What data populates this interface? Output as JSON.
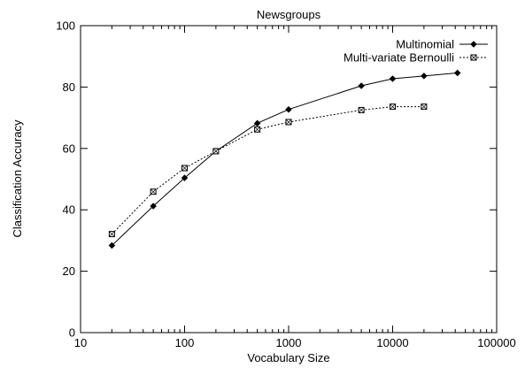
{
  "chart_data": {
    "type": "line",
    "title": "Newsgroups",
    "xlabel": "Vocabulary Size",
    "ylabel": "Classification Accuracy",
    "xscale": "log",
    "xlim": [
      10,
      100000
    ],
    "ylim": [
      0,
      100
    ],
    "xticks": [
      {
        "value": 10,
        "label": "10"
      },
      {
        "value": 100,
        "label": "100"
      },
      {
        "value": 1000,
        "label": "1000"
      },
      {
        "value": 10000,
        "label": "10000"
      },
      {
        "value": 100000,
        "label": "100000"
      }
    ],
    "yticks": [
      {
        "value": 0,
        "label": "0"
      },
      {
        "value": 20,
        "label": "20"
      },
      {
        "value": 40,
        "label": "40"
      },
      {
        "value": 60,
        "label": "60"
      },
      {
        "value": 80,
        "label": "80"
      },
      {
        "value": 100,
        "label": "100"
      }
    ],
    "grid": false,
    "legend_position": "top-right",
    "series": [
      {
        "name": "Multinomial",
        "line_style": "solid",
        "marker": "diamond",
        "x": [
          20,
          50,
          100,
          200,
          500,
          1000,
          5000,
          10000,
          20000,
          42000
        ],
        "y": [
          28.4,
          41.2,
          50.4,
          59.1,
          68.2,
          72.7,
          80.4,
          82.7,
          83.6,
          84.6
        ]
      },
      {
        "name": "Multi-variate Bernoulli",
        "line_style": "dotted",
        "marker": "square",
        "x": [
          20,
          50,
          100,
          200,
          500,
          1000,
          5000,
          10000,
          20000
        ],
        "y": [
          32.1,
          45.9,
          53.6,
          59.1,
          66.2,
          68.6,
          72.5,
          73.6,
          73.6
        ]
      }
    ]
  }
}
